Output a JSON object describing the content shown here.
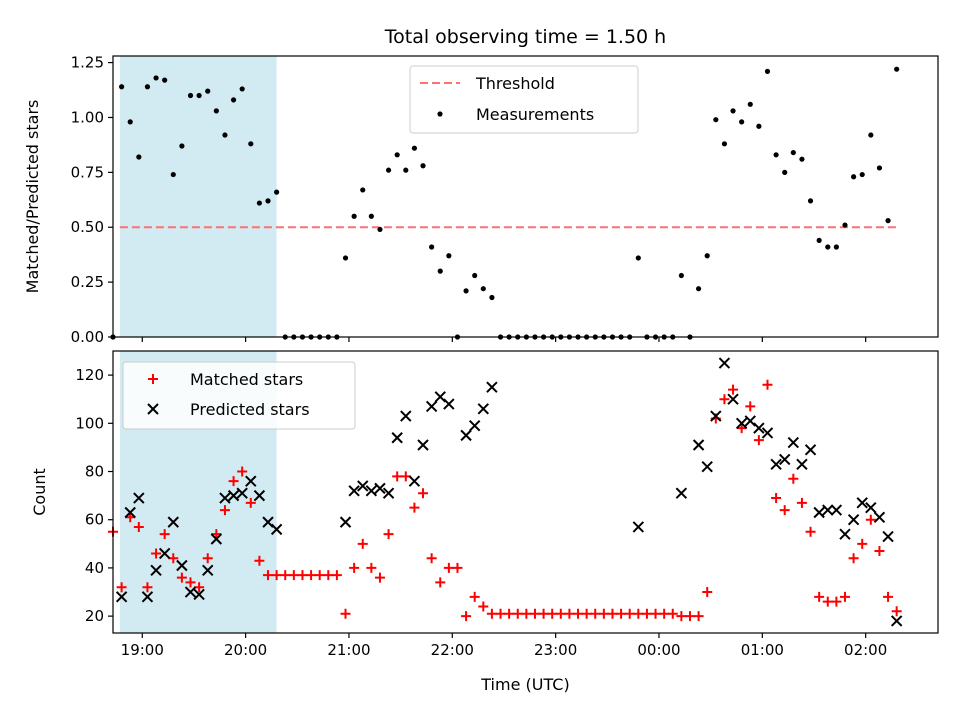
{
  "chart_data": [
    {
      "type": "scatter",
      "title": "Total observing time = 1.50 h",
      "xlabel": "",
      "ylabel": "Matched/Predicted stars",
      "xlim": [
        "18:43",
        "02:42"
      ],
      "ylim": [
        0,
        1.28
      ],
      "yticks": [
        "0.00",
        "0.25",
        "0.50",
        "0.75",
        "1.00",
        "1.25"
      ],
      "legend_position": "upper-center",
      "shaded_interval": [
        "18:47",
        "20:18"
      ],
      "shaded_color": "#add8e6",
      "threshold": {
        "name": "Threshold",
        "value": 0.5,
        "x_range": [
          "18:47",
          "02:18"
        ],
        "color": "#ff7070",
        "style": "dashed"
      },
      "series": [
        {
          "name": "Measurements",
          "color": "#000000",
          "marker": "dot",
          "points": [
            [
              "18:43",
              0.0
            ],
            [
              "18:48",
              1.14
            ],
            [
              "18:53",
              0.98
            ],
            [
              "18:58",
              0.82
            ],
            [
              "19:03",
              1.14
            ],
            [
              "19:08",
              1.18
            ],
            [
              "19:13",
              1.17
            ],
            [
              "19:18",
              0.74
            ],
            [
              "19:23",
              0.87
            ],
            [
              "19:28",
              1.1
            ],
            [
              "19:33",
              1.1
            ],
            [
              "19:38",
              1.12
            ],
            [
              "19:43",
              1.03
            ],
            [
              "19:48",
              0.92
            ],
            [
              "19:53",
              1.08
            ],
            [
              "19:58",
              1.13
            ],
            [
              "20:03",
              0.88
            ],
            [
              "20:08",
              0.61
            ],
            [
              "20:13",
              0.62
            ],
            [
              "20:18",
              0.66
            ],
            [
              "20:23",
              0.0
            ],
            [
              "20:28",
              0.0
            ],
            [
              "20:33",
              0.0
            ],
            [
              "20:38",
              0.0
            ],
            [
              "20:43",
              0.0
            ],
            [
              "20:48",
              0.0
            ],
            [
              "20:53",
              0.0
            ],
            [
              "20:58",
              0.36
            ],
            [
              "21:03",
              0.55
            ],
            [
              "21:08",
              0.67
            ],
            [
              "21:13",
              0.55
            ],
            [
              "21:18",
              0.49
            ],
            [
              "21:23",
              0.76
            ],
            [
              "21:28",
              0.83
            ],
            [
              "21:33",
              0.76
            ],
            [
              "21:38",
              0.86
            ],
            [
              "21:43",
              0.78
            ],
            [
              "21:48",
              0.41
            ],
            [
              "21:53",
              0.3
            ],
            [
              "21:58",
              0.37
            ],
            [
              "22:03",
              0.0
            ],
            [
              "22:08",
              0.21
            ],
            [
              "22:13",
              0.28
            ],
            [
              "22:18",
              0.22
            ],
            [
              "22:23",
              0.18
            ],
            [
              "22:28",
              0.0
            ],
            [
              "22:33",
              0.0
            ],
            [
              "22:38",
              0.0
            ],
            [
              "22:43",
              0.0
            ],
            [
              "22:48",
              0.0
            ],
            [
              "22:53",
              0.0
            ],
            [
              "22:58",
              0.0
            ],
            [
              "23:03",
              0.0
            ],
            [
              "23:08",
              0.0
            ],
            [
              "23:13",
              0.0
            ],
            [
              "23:18",
              0.0
            ],
            [
              "23:23",
              0.0
            ],
            [
              "23:28",
              0.0
            ],
            [
              "23:33",
              0.0
            ],
            [
              "23:38",
              0.0
            ],
            [
              "23:43",
              0.0
            ],
            [
              "23:48",
              0.36
            ],
            [
              "23:53",
              0.0
            ],
            [
              "23:58",
              0.0
            ],
            [
              "00:03",
              0.0
            ],
            [
              "00:08",
              0.0
            ],
            [
              "00:13",
              0.28
            ],
            [
              "00:18",
              0.0
            ],
            [
              "00:23",
              0.22
            ],
            [
              "00:28",
              0.37
            ],
            [
              "00:33",
              0.99
            ],
            [
              "00:38",
              0.88
            ],
            [
              "00:43",
              1.03
            ],
            [
              "00:48",
              0.98
            ],
            [
              "00:53",
              1.06
            ],
            [
              "00:58",
              0.96
            ],
            [
              "01:03",
              1.21
            ],
            [
              "01:08",
              0.83
            ],
            [
              "01:13",
              0.75
            ],
            [
              "01:18",
              0.84
            ],
            [
              "01:23",
              0.81
            ],
            [
              "01:28",
              0.62
            ],
            [
              "01:33",
              0.44
            ],
            [
              "01:38",
              0.41
            ],
            [
              "01:43",
              0.41
            ],
            [
              "01:48",
              0.51
            ],
            [
              "01:53",
              0.73
            ],
            [
              "01:58",
              0.74
            ],
            [
              "02:03",
              0.92
            ],
            [
              "02:08",
              0.77
            ],
            [
              "02:13",
              0.53
            ],
            [
              "02:18",
              1.22
            ]
          ]
        }
      ]
    },
    {
      "type": "scatter",
      "title": "",
      "xlabel": "Time (UTC)",
      "ylabel": "Count",
      "xlim": [
        "18:43",
        "02:42"
      ],
      "ylim": [
        13,
        130
      ],
      "xticks": [
        "19:00",
        "20:00",
        "21:00",
        "22:00",
        "23:00",
        "00:00",
        "01:00",
        "02:00"
      ],
      "yticks": [
        "20",
        "40",
        "60",
        "80",
        "100",
        "120"
      ],
      "legend_position": "upper-left",
      "shaded_interval": [
        "18:47",
        "20:18"
      ],
      "shaded_color": "#add8e6",
      "series": [
        {
          "name": "Matched stars",
          "color": "#ff0000",
          "marker": "plus",
          "points": [
            [
              "18:43",
              55
            ],
            [
              "18:48",
              32
            ],
            [
              "18:53",
              61
            ],
            [
              "18:58",
              57
            ],
            [
              "19:03",
              32
            ],
            [
              "19:08",
              46
            ],
            [
              "19:13",
              54
            ],
            [
              "19:18",
              44
            ],
            [
              "19:23",
              36
            ],
            [
              "19:28",
              34
            ],
            [
              "19:33",
              32
            ],
            [
              "19:38",
              44
            ],
            [
              "19:43",
              54
            ],
            [
              "19:48",
              64
            ],
            [
              "19:53",
              76
            ],
            [
              "19:58",
              80
            ],
            [
              "20:03",
              67
            ],
            [
              "20:08",
              43
            ],
            [
              "20:13",
              37
            ],
            [
              "20:18",
              37
            ],
            [
              "20:23",
              37
            ],
            [
              "20:28",
              37
            ],
            [
              "20:33",
              37
            ],
            [
              "20:38",
              37
            ],
            [
              "20:43",
              37
            ],
            [
              "20:48",
              37
            ],
            [
              "20:53",
              37
            ],
            [
              "20:58",
              21
            ],
            [
              "21:03",
              40
            ],
            [
              "21:08",
              50
            ],
            [
              "21:13",
              40
            ],
            [
              "21:18",
              36
            ],
            [
              "21:23",
              54
            ],
            [
              "21:28",
              78
            ],
            [
              "21:33",
              78
            ],
            [
              "21:38",
              65
            ],
            [
              "21:43",
              71
            ],
            [
              "21:48",
              44
            ],
            [
              "21:53",
              34
            ],
            [
              "21:58",
              40
            ],
            [
              "22:03",
              40
            ],
            [
              "22:08",
              20
            ],
            [
              "22:13",
              28
            ],
            [
              "22:18",
              24
            ],
            [
              "22:23",
              21
            ],
            [
              "22:28",
              21
            ],
            [
              "22:33",
              21
            ],
            [
              "22:38",
              21
            ],
            [
              "22:43",
              21
            ],
            [
              "22:48",
              21
            ],
            [
              "22:53",
              21
            ],
            [
              "22:58",
              21
            ],
            [
              "23:03",
              21
            ],
            [
              "23:08",
              21
            ],
            [
              "23:13",
              21
            ],
            [
              "23:18",
              21
            ],
            [
              "23:23",
              21
            ],
            [
              "23:28",
              21
            ],
            [
              "23:33",
              21
            ],
            [
              "23:38",
              21
            ],
            [
              "23:43",
              21
            ],
            [
              "23:48",
              21
            ],
            [
              "23:53",
              21
            ],
            [
              "23:58",
              21
            ],
            [
              "00:03",
              21
            ],
            [
              "00:08",
              21
            ],
            [
              "00:13",
              20
            ],
            [
              "00:18",
              20
            ],
            [
              "00:23",
              20
            ],
            [
              "00:28",
              30
            ],
            [
              "00:33",
              102
            ],
            [
              "00:38",
              110
            ],
            [
              "00:43",
              114
            ],
            [
              "00:48",
              98
            ],
            [
              "00:53",
              107
            ],
            [
              "00:58",
              93
            ],
            [
              "01:03",
              116
            ],
            [
              "01:08",
              69
            ],
            [
              "01:13",
              64
            ],
            [
              "01:18",
              77
            ],
            [
              "01:23",
              67
            ],
            [
              "01:28",
              55
            ],
            [
              "01:33",
              28
            ],
            [
              "01:38",
              26
            ],
            [
              "01:43",
              26
            ],
            [
              "01:48",
              28
            ],
            [
              "01:53",
              44
            ],
            [
              "01:58",
              50
            ],
            [
              "02:03",
              60
            ],
            [
              "02:08",
              47
            ],
            [
              "02:13",
              28
            ],
            [
              "02:18",
              22
            ]
          ]
        },
        {
          "name": "Predicted stars",
          "color": "#000000",
          "marker": "x",
          "points": [
            [
              "18:48",
              28
            ],
            [
              "18:53",
              63
            ],
            [
              "18:58",
              69
            ],
            [
              "19:03",
              28
            ],
            [
              "19:08",
              39
            ],
            [
              "19:13",
              46
            ],
            [
              "19:18",
              59
            ],
            [
              "19:23",
              41
            ],
            [
              "19:28",
              30
            ],
            [
              "19:33",
              29
            ],
            [
              "19:38",
              39
            ],
            [
              "19:43",
              52
            ],
            [
              "19:48",
              69
            ],
            [
              "19:53",
              70
            ],
            [
              "19:58",
              71
            ],
            [
              "20:03",
              76
            ],
            [
              "20:08",
              70
            ],
            [
              "20:13",
              59
            ],
            [
              "20:18",
              56
            ],
            [
              "20:58",
              59
            ],
            [
              "21:03",
              72
            ],
            [
              "21:08",
              74
            ],
            [
              "21:13",
              72
            ],
            [
              "21:18",
              73
            ],
            [
              "21:23",
              71
            ],
            [
              "21:28",
              94
            ],
            [
              "21:33",
              103
            ],
            [
              "21:38",
              76
            ],
            [
              "21:43",
              91
            ],
            [
              "21:48",
              107
            ],
            [
              "21:53",
              111
            ],
            [
              "21:58",
              108
            ],
            [
              "22:08",
              95
            ],
            [
              "22:13",
              99
            ],
            [
              "22:18",
              106
            ],
            [
              "22:23",
              115
            ],
            [
              "23:48",
              57
            ],
            [
              "00:13",
              71
            ],
            [
              "00:23",
              91
            ],
            [
              "00:28",
              82
            ],
            [
              "00:33",
              103
            ],
            [
              "00:38",
              125
            ],
            [
              "00:43",
              110
            ],
            [
              "00:48",
              100
            ],
            [
              "00:53",
              101
            ],
            [
              "00:58",
              98
            ],
            [
              "01:03",
              96
            ],
            [
              "01:08",
              83
            ],
            [
              "01:13",
              85
            ],
            [
              "01:18",
              92
            ],
            [
              "01:23",
              83
            ],
            [
              "01:28",
              89
            ],
            [
              "01:33",
              63
            ],
            [
              "01:38",
              64
            ],
            [
              "01:43",
              64
            ],
            [
              "01:48",
              54
            ],
            [
              "01:53",
              60
            ],
            [
              "01:58",
              67
            ],
            [
              "02:03",
              65
            ],
            [
              "02:08",
              61
            ],
            [
              "02:13",
              53
            ],
            [
              "02:18",
              18
            ]
          ]
        }
      ]
    }
  ]
}
